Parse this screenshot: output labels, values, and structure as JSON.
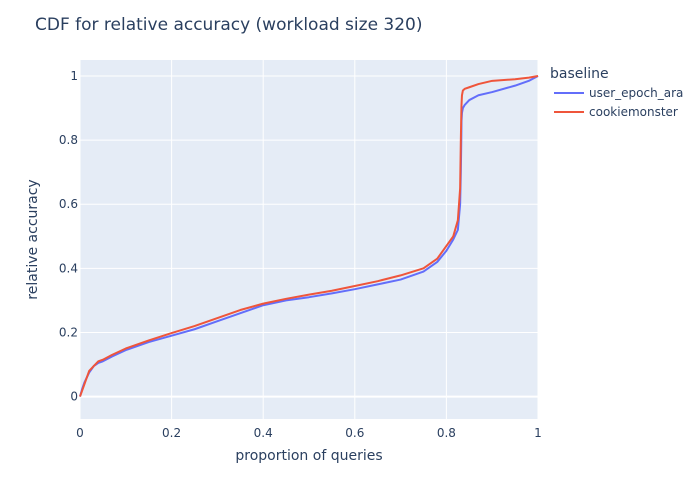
{
  "chart_data": {
    "type": "line",
    "title": "CDF for relative accuracy (workload size 320)",
    "xlabel": "proportion of queries",
    "ylabel": "relative accuracy",
    "xlim": [
      0,
      1
    ],
    "ylim": [
      -0.07,
      1.05
    ],
    "xticks": [
      0,
      0.2,
      0.4,
      0.6,
      0.8,
      1
    ],
    "xtick_labels": [
      "0",
      "0.2",
      "0.4",
      "0.6",
      "0.8",
      "1"
    ],
    "yticks": [
      0,
      0.2,
      0.4,
      0.6,
      0.8,
      1
    ],
    "ytick_labels": [
      "0",
      "0.2",
      "0.4",
      "0.6",
      "0.8",
      "1"
    ],
    "grid": true,
    "legend_title": "baseline",
    "legend_position": "right",
    "plot_bgcolor": "#E5ECF6",
    "series": [
      {
        "name": "user_epoch_ara",
        "color": "#636EFA",
        "x": [
          0,
          0.005,
          0.01,
          0.02,
          0.03,
          0.04,
          0.05,
          0.07,
          0.1,
          0.15,
          0.2,
          0.25,
          0.3,
          0.35,
          0.4,
          0.45,
          0.5,
          0.55,
          0.6,
          0.65,
          0.7,
          0.75,
          0.78,
          0.8,
          0.815,
          0.825,
          0.83,
          0.8315,
          0.8325,
          0.833,
          0.834,
          0.836,
          0.84,
          0.85,
          0.87,
          0.9,
          0.95,
          0.98,
          1.0
        ],
        "y": [
          0,
          0.025,
          0.045,
          0.075,
          0.095,
          0.105,
          0.11,
          0.125,
          0.145,
          0.17,
          0.19,
          0.21,
          0.235,
          0.26,
          0.285,
          0.3,
          0.31,
          0.322,
          0.335,
          0.35,
          0.365,
          0.39,
          0.42,
          0.455,
          0.49,
          0.52,
          0.6,
          0.7,
          0.8,
          0.86,
          0.885,
          0.9,
          0.91,
          0.925,
          0.94,
          0.95,
          0.97,
          0.985,
          1.0
        ]
      },
      {
        "name": "cookiemonster",
        "color": "#EF553B",
        "x": [
          0,
          0.005,
          0.01,
          0.02,
          0.03,
          0.04,
          0.05,
          0.07,
          0.1,
          0.15,
          0.2,
          0.25,
          0.3,
          0.35,
          0.4,
          0.45,
          0.5,
          0.55,
          0.6,
          0.65,
          0.7,
          0.75,
          0.78,
          0.8,
          0.815,
          0.825,
          0.83,
          0.8315,
          0.8325,
          0.833,
          0.834,
          0.836,
          0.84,
          0.85,
          0.87,
          0.9,
          0.95,
          0.98,
          1.0
        ],
        "y": [
          0,
          0.02,
          0.04,
          0.08,
          0.095,
          0.11,
          0.115,
          0.13,
          0.15,
          0.175,
          0.198,
          0.22,
          0.245,
          0.27,
          0.29,
          0.305,
          0.318,
          0.33,
          0.345,
          0.36,
          0.378,
          0.4,
          0.43,
          0.47,
          0.5,
          0.55,
          0.65,
          0.8,
          0.88,
          0.91,
          0.94,
          0.955,
          0.96,
          0.965,
          0.975,
          0.985,
          0.99,
          0.995,
          1.0
        ]
      }
    ]
  }
}
